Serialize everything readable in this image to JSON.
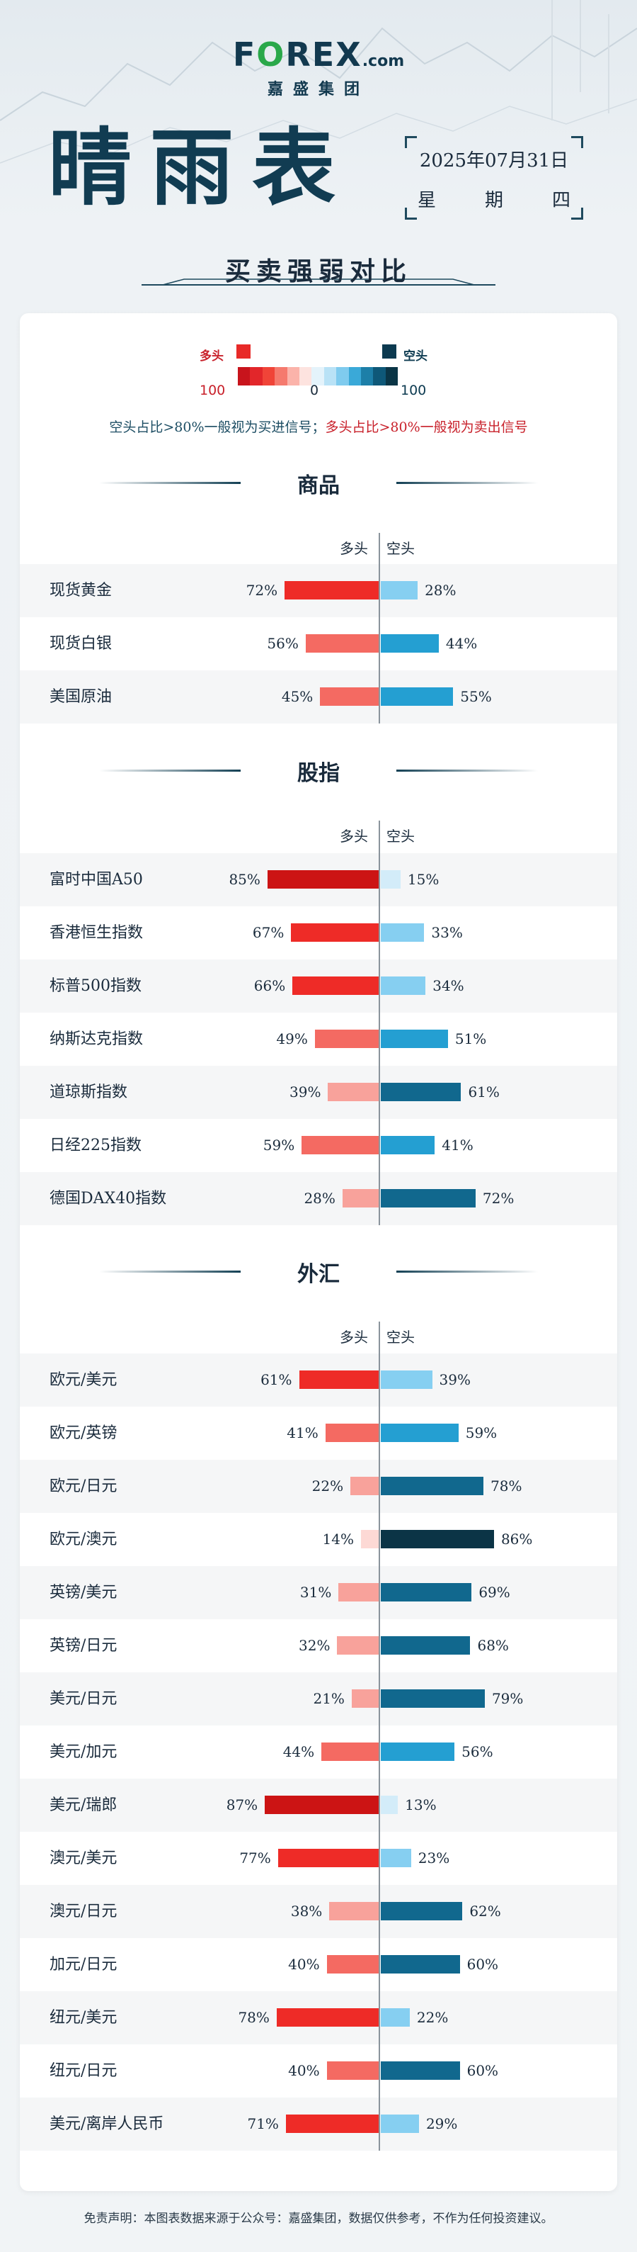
{
  "brand": {
    "logo_text": "F",
    "logo_o": "O",
    "logo_rest": "REX",
    "logo_suffix": ".com",
    "subtitle": "嘉盛集团"
  },
  "title": "晴雨表",
  "date": "2025年07月31日",
  "weekday": [
    "星",
    "期",
    "四"
  ],
  "subtitle": "买卖强弱对比",
  "legend": {
    "bull_label": "多头",
    "bear_label": "空头",
    "scale_left": "100",
    "scale_mid": "0",
    "scale_right": "100",
    "scale_colors": [
      "#c8141c",
      "#e2262a",
      "#f04438",
      "#f57a6e",
      "#fbb3aa",
      "#fde3df",
      "#e4f3fb",
      "#b9e2f6",
      "#7fcbee",
      "#3aa9d8",
      "#1d7fa8",
      "#0e5878",
      "#0a3546"
    ]
  },
  "note": {
    "bear_signal": "空头占比>80%一般视为买进信号；",
    "bull_signal": "多头占比>80%一般视为卖出信号"
  },
  "column_headers": {
    "bull": "多头",
    "bear": "空头"
  },
  "sections": [
    {
      "title": "商品",
      "rows": [
        {
          "name": "现货黄金",
          "bull": 72,
          "bear": 28
        },
        {
          "name": "现货白银",
          "bull": 56,
          "bear": 44
        },
        {
          "name": "美国原油",
          "bull": 45,
          "bear": 55
        }
      ]
    },
    {
      "title": "股指",
      "rows": [
        {
          "name": "富时中国A50",
          "bull": 85,
          "bear": 15
        },
        {
          "name": "香港恒生指数",
          "bull": 67,
          "bear": 33
        },
        {
          "name": "标普500指数",
          "bull": 66,
          "bear": 34
        },
        {
          "name": "纳斯达克指数",
          "bull": 49,
          "bear": 51
        },
        {
          "name": "道琼斯指数",
          "bull": 39,
          "bear": 61
        },
        {
          "name": "日经225指数",
          "bull": 59,
          "bear": 41
        },
        {
          "name": "德国DAX40指数",
          "bull": 28,
          "bear": 72
        }
      ]
    },
    {
      "title": "外汇",
      "rows": [
        {
          "name": "欧元/美元",
          "bull": 61,
          "bear": 39
        },
        {
          "name": "欧元/英镑",
          "bull": 41,
          "bear": 59
        },
        {
          "name": "欧元/日元",
          "bull": 22,
          "bear": 78
        },
        {
          "name": "欧元/澳元",
          "bull": 14,
          "bear": 86
        },
        {
          "name": "英镑/美元",
          "bull": 31,
          "bear": 69
        },
        {
          "name": "英镑/日元",
          "bull": 32,
          "bear": 68
        },
        {
          "name": "美元/日元",
          "bull": 21,
          "bear": 79
        },
        {
          "name": "美元/加元",
          "bull": 44,
          "bear": 56
        },
        {
          "name": "美元/瑞郎",
          "bull": 87,
          "bear": 13
        },
        {
          "name": "澳元/美元",
          "bull": 77,
          "bear": 23
        },
        {
          "name": "澳元/日元",
          "bull": 38,
          "bear": 62
        },
        {
          "name": "加元/日元",
          "bull": 40,
          "bear": 60
        },
        {
          "name": "纽元/美元",
          "bull": 78,
          "bear": 22
        },
        {
          "name": "纽元/日元",
          "bull": 40,
          "bear": 60
        },
        {
          "name": "美元/离岸人民币",
          "bull": 71,
          "bear": 29
        }
      ]
    }
  ],
  "disclaimer": "免责声明：本图表数据来源于公众号：嘉盛集团，数据仅供参考，不作为任何投资建议。"
}
